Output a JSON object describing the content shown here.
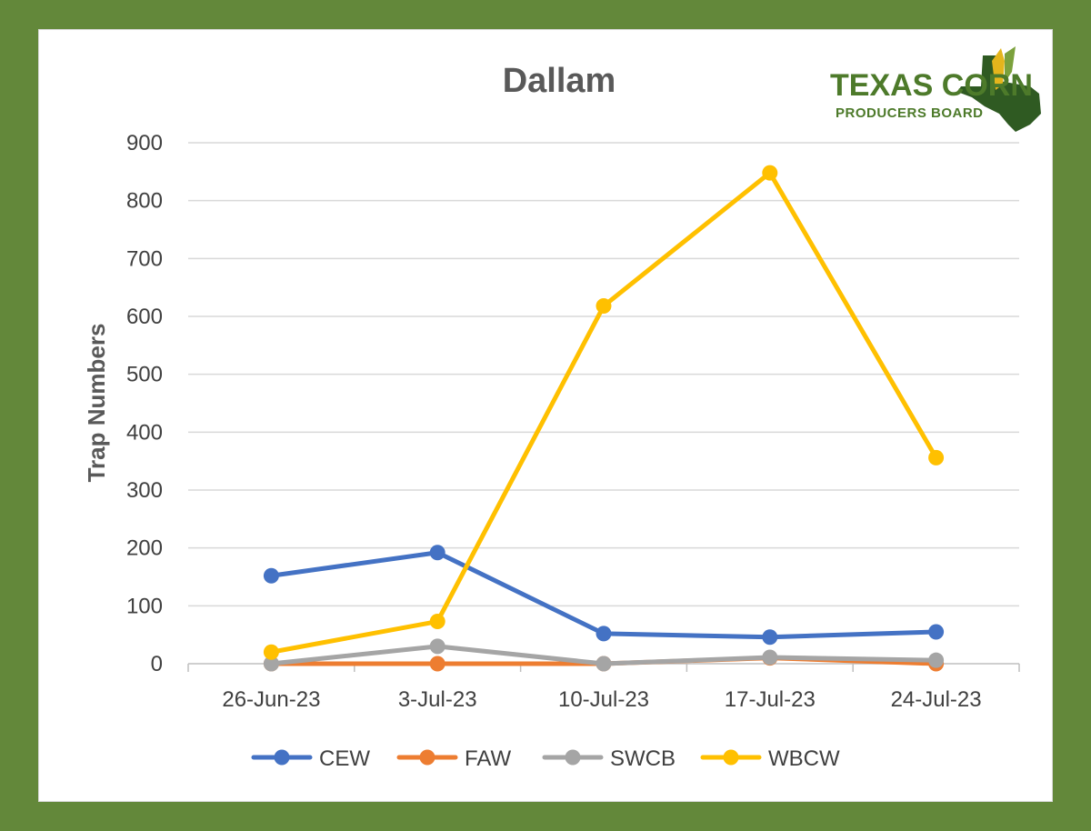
{
  "chart_data": {
    "type": "line",
    "title": "Dallam",
    "xlabel": "",
    "ylabel": "Trap Numbers",
    "categories": [
      "26-Jun-23",
      "3-Jul-23",
      "10-Jul-23",
      "17-Jul-23",
      "24-Jul-23"
    ],
    "ylim": [
      0,
      900
    ],
    "yticks": [
      "0",
      "100",
      "200",
      "300",
      "400",
      "500",
      "600",
      "700",
      "800",
      "900"
    ],
    "grid": true,
    "legend_position": "bottom",
    "series": [
      {
        "name": "CEW",
        "color": "#4472c4",
        "values": [
          152,
          192,
          52,
          46,
          55
        ]
      },
      {
        "name": "FAW",
        "color": "#ed7d31",
        "values": [
          0,
          0,
          0,
          10,
          0
        ]
      },
      {
        "name": "SWCB",
        "color": "#a5a5a5",
        "values": [
          0,
          30,
          0,
          11,
          6
        ]
      },
      {
        "name": "WBCW",
        "color": "#ffc000",
        "values": [
          20,
          73,
          618,
          848,
          356
        ]
      }
    ]
  },
  "logo": {
    "line1": "TEXAS CORN",
    "line2": "PRODUCERS BOARD"
  }
}
